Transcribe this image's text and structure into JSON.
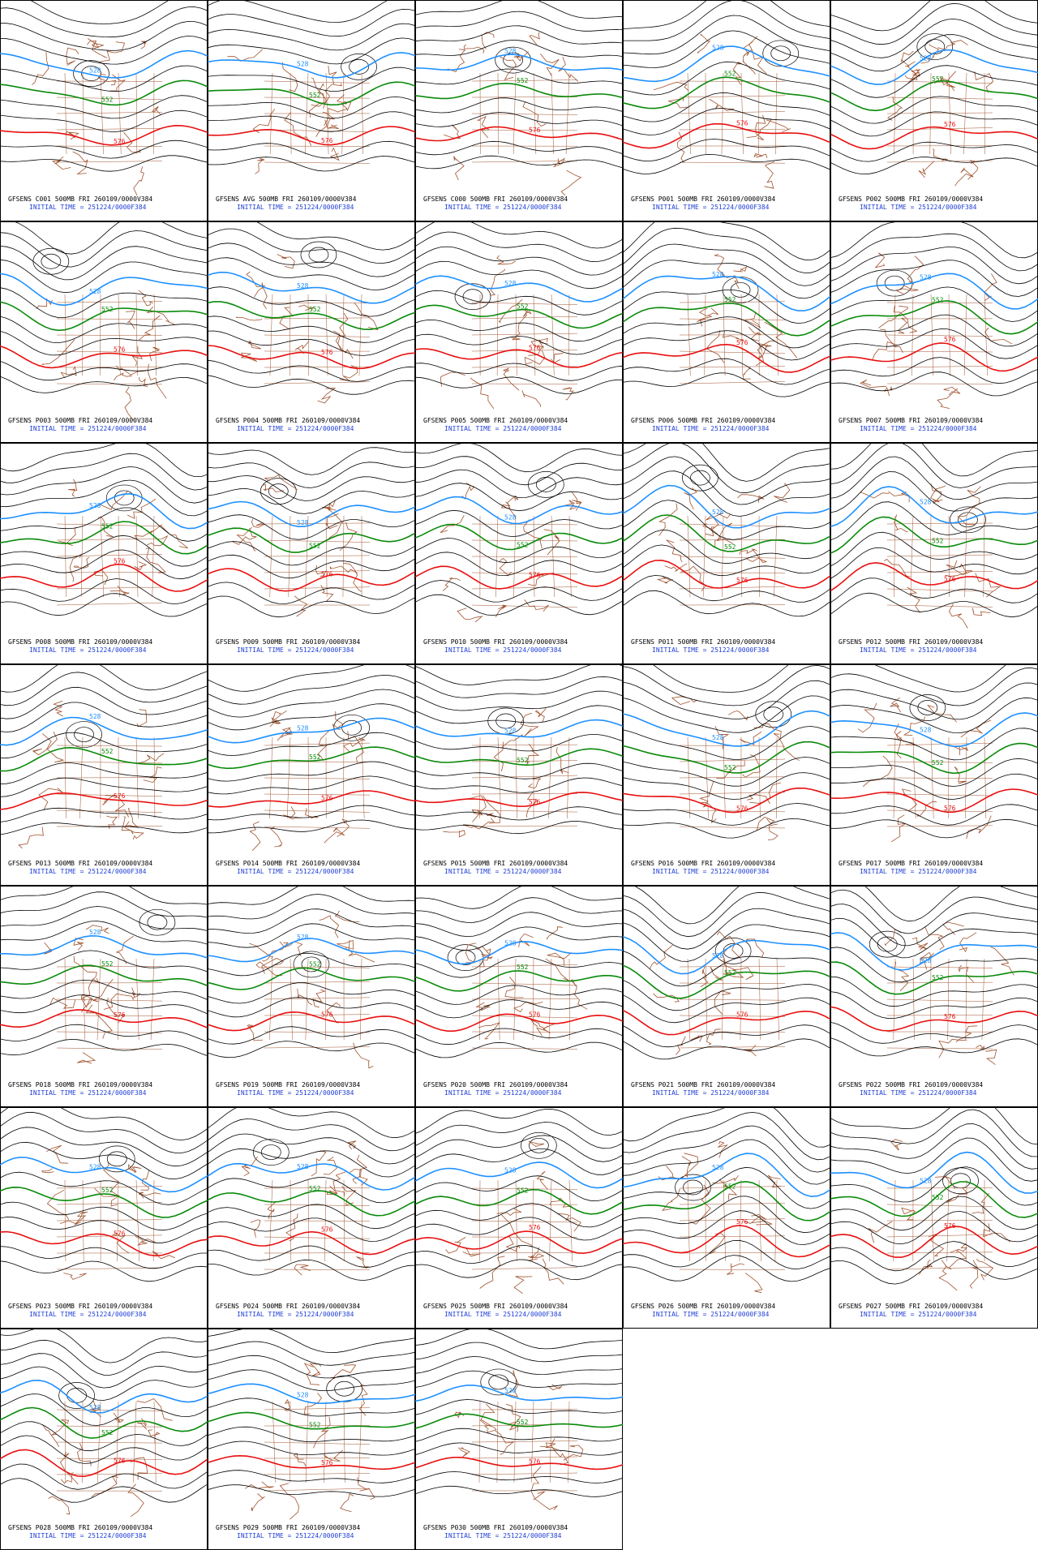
{
  "panels": [
    {
      "title": "GFSENS C001 500MB FRI 260109/0000V384",
      "init": "INITIAL TIME = 251224/0000F384",
      "contour_labels": [
        "528",
        "552",
        "576"
      ]
    },
    {
      "title": "GFSENS AVG 500MB FRI 260109/0000V384",
      "init": "INITIAL TIME = 251224/0000F384",
      "contour_labels": [
        "528",
        "552",
        "576"
      ]
    },
    {
      "title": "GFSENS C000 500MB FRI 260109/0000V384",
      "init": "INITIAL TIME = 251224/0000F384",
      "contour_labels": [
        "528",
        "552",
        "576"
      ]
    },
    {
      "title": "GFSENS P001 500MB FRI 260109/0000V384",
      "init": "INITIAL TIME = 251224/0000F384",
      "contour_labels": [
        "528",
        "552",
        "576"
      ]
    },
    {
      "title": "GFSENS P002 500MB FRI 260109/0000V384",
      "init": "INITIAL TIME = 251224/0000F384",
      "contour_labels": [
        "528",
        "552",
        "576"
      ]
    },
    {
      "title": "GFSENS P003 500MB FRI 260109/0000V384",
      "init": "INITIAL TIME = 251224/0000F384",
      "contour_labels": [
        "528",
        "552",
        "576"
      ]
    },
    {
      "title": "GFSENS P004 500MB FRI 260109/0000V384",
      "init": "INITIAL TIME = 251224/0000F384",
      "contour_labels": [
        "528",
        "552",
        "576"
      ]
    },
    {
      "title": "GFSENS P005 500MB FRI 260109/0000V384",
      "init": "INITIAL TIME = 251224/0000F384",
      "contour_labels": [
        "528",
        "552",
        "576"
      ]
    },
    {
      "title": "GFSENS P006 500MB FRI 260109/0000V384",
      "init": "INITIAL TIME = 251224/0000F384",
      "contour_labels": [
        "528",
        "552",
        "576"
      ]
    },
    {
      "title": "GFSENS P007 500MB FRI 260109/0000V384",
      "init": "INITIAL TIME = 251224/0000F384",
      "contour_labels": [
        "528",
        "552",
        "576"
      ]
    },
    {
      "title": "GFSENS P008 500MB FRI 260109/0000V384",
      "init": "INITIAL TIME = 251224/0000F384",
      "contour_labels": [
        "528",
        "552",
        "576"
      ]
    },
    {
      "title": "GFSENS P009 500MB FRI 260109/0000V384",
      "init": "INITIAL TIME = 251224/0000F384",
      "contour_labels": [
        "528",
        "552",
        "576"
      ]
    },
    {
      "title": "GFSENS P010 500MB FRI 260109/0000V384",
      "init": "INITIAL TIME = 251224/0000F384",
      "contour_labels": [
        "528",
        "552",
        "576"
      ]
    },
    {
      "title": "GFSENS P011 500MB FRI 260109/0000V384",
      "init": "INITIAL TIME = 251224/0000F384",
      "contour_labels": [
        "528",
        "552",
        "576"
      ]
    },
    {
      "title": "GFSENS P012 500MB FRI 260109/0000V384",
      "init": "INITIAL TIME = 251224/0000F384",
      "contour_labels": [
        "528",
        "552",
        "576"
      ]
    },
    {
      "title": "GFSENS P013 500MB FRI 260109/0000V384",
      "init": "INITIAL TIME = 251224/0000F384",
      "contour_labels": [
        "528",
        "552",
        "576"
      ]
    },
    {
      "title": "GFSENS P014 500MB FRI 260109/0000V384",
      "init": "INITIAL TIME = 251224/0000F384",
      "contour_labels": [
        "528",
        "552",
        "576"
      ]
    },
    {
      "title": "GFSENS P015 500MB FRI 260109/0000V384",
      "init": "INITIAL TIME = 251224/0000F384",
      "contour_labels": [
        "528",
        "552",
        "576"
      ]
    },
    {
      "title": "GFSENS P016 500MB FRI 260109/0000V384",
      "init": "INITIAL TIME = 251224/0000F384",
      "contour_labels": [
        "528",
        "552",
        "576"
      ]
    },
    {
      "title": "GFSENS P017 500MB FRI 260109/0000V384",
      "init": "INITIAL TIME = 251224/0000F384",
      "contour_labels": [
        "528",
        "552",
        "576"
      ]
    },
    {
      "title": "GFSENS P018 500MB FRI 260109/0000V384",
      "init": "INITIAL TIME = 251224/0000F384",
      "contour_labels": [
        "528",
        "552",
        "576"
      ]
    },
    {
      "title": "GFSENS P019 500MB FRI 260109/0000V384",
      "init": "INITIAL TIME = 251224/0000F384",
      "contour_labels": [
        "528",
        "552",
        "576"
      ]
    },
    {
      "title": "GFSENS P020 500MB FRI 260109/0000V384",
      "init": "INITIAL TIME = 251224/0000F384",
      "contour_labels": [
        "528",
        "552",
        "576"
      ]
    },
    {
      "title": "GFSENS P021 500MB FRI 260109/0000V384",
      "init": "INITIAL TIME = 251224/0000F384",
      "contour_labels": [
        "528",
        "552",
        "576"
      ]
    },
    {
      "title": "GFSENS P022 500MB FRI 260109/0000V384",
      "init": "INITIAL TIME = 251224/0000F384",
      "contour_labels": [
        "528",
        "552",
        "576"
      ]
    },
    {
      "title": "GFSENS P023 500MB FRI 260109/0000V384",
      "init": "INITIAL TIME = 251224/0000F384",
      "contour_labels": [
        "528",
        "552",
        "576"
      ]
    },
    {
      "title": "GFSENS P024 500MB FRI 260109/0000V384",
      "init": "INITIAL TIME = 251224/0000F384",
      "contour_labels": [
        "528",
        "552",
        "576"
      ]
    },
    {
      "title": "GFSENS P025 500MB FRI 260109/0000V384",
      "init": "INITIAL TIME = 251224/0000F384",
      "contour_labels": [
        "528",
        "552",
        "576"
      ]
    },
    {
      "title": "GFSENS P026 500MB FRI 260109/0000V384",
      "init": "INITIAL TIME = 251224/0000F384",
      "contour_labels": [
        "528",
        "552",
        "576"
      ]
    },
    {
      "title": "GFSENS P027 500MB FRI 260109/0000V384",
      "init": "INITIAL TIME = 251224/0000F384",
      "contour_labels": [
        "528",
        "552",
        "576"
      ]
    },
    {
      "title": "GFSENS P028 500MB FRI 260109/0000V384",
      "init": "INITIAL TIME = 251224/0000F384",
      "contour_labels": [
        "528",
        "552",
        "576"
      ]
    },
    {
      "title": "GFSENS P029 500MB FRI 260109/0000V384",
      "init": "INITIAL TIME = 251224/0000F384",
      "contour_labels": [
        "528",
        "552",
        "576"
      ]
    },
    {
      "title": "GFSENS P030 500MB FRI 260109/0000V384",
      "init": "INITIAL TIME = 251224/0000F384",
      "contour_labels": [
        "528",
        "552",
        "576"
      ]
    }
  ]
}
